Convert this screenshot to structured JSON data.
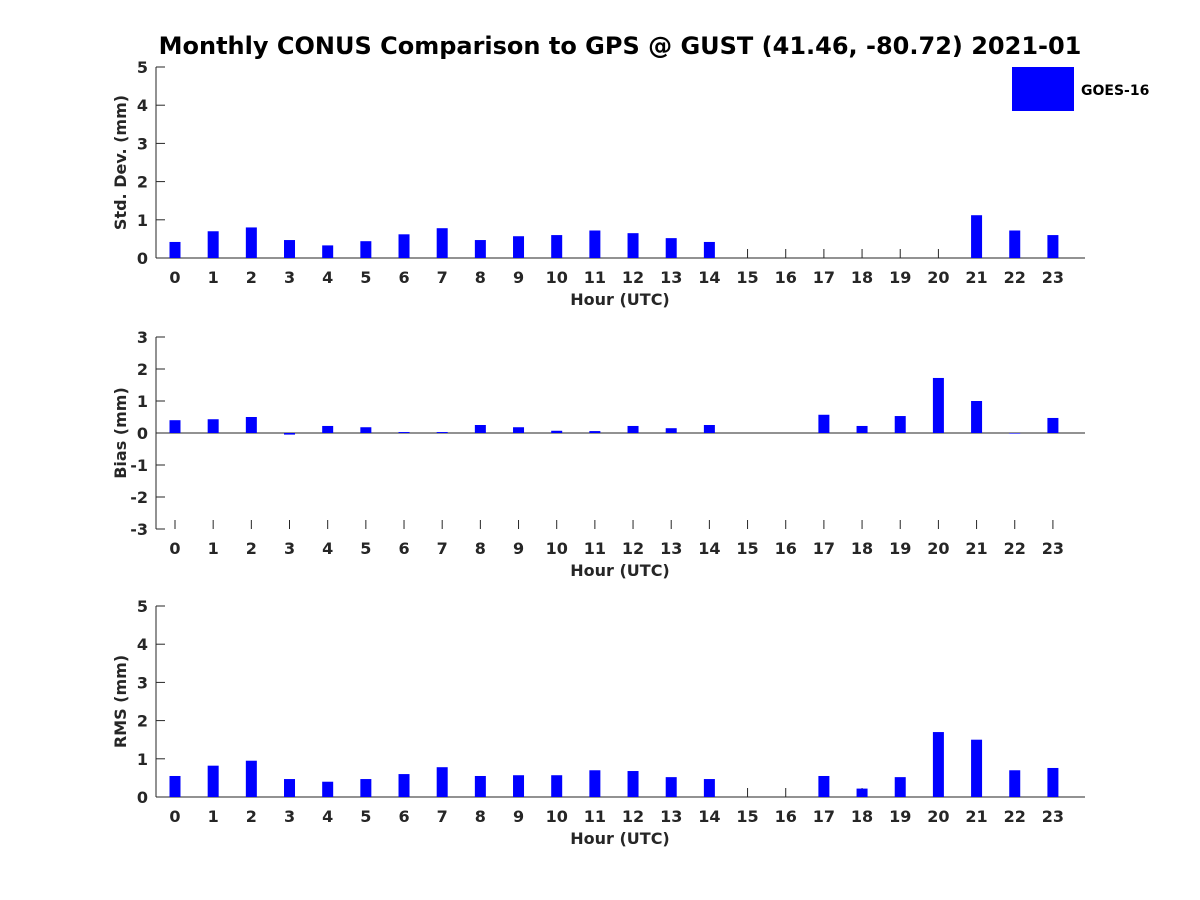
{
  "title": "Monthly CONUS Comparison to GPS @ GUST (41.46, -80.72) 2021-01",
  "legend": {
    "label": "GOES-16",
    "color": "#0000ff"
  },
  "colors": {
    "bar": "#0000ff",
    "axis": "#262626"
  },
  "chart_data": [
    {
      "type": "bar",
      "title": "",
      "xlabel": "Hour (UTC)",
      "ylabel": "Std. Dev. (mm)",
      "ylim": [
        0,
        5
      ],
      "yticks": [
        0,
        1,
        2,
        3,
        4,
        5
      ],
      "categories": [
        "0",
        "1",
        "2",
        "3",
        "4",
        "5",
        "6",
        "7",
        "8",
        "9",
        "10",
        "11",
        "12",
        "13",
        "14",
        "15",
        "16",
        "17",
        "18",
        "19",
        "20",
        "21",
        "22",
        "23"
      ],
      "series": [
        {
          "name": "GOES-16",
          "values": [
            0.42,
            0.7,
            0.8,
            0.47,
            0.33,
            0.44,
            0.62,
            0.78,
            0.47,
            0.57,
            0.6,
            0.72,
            0.65,
            0.52,
            0.42,
            null,
            null,
            null,
            null,
            null,
            null,
            1.12,
            0.72,
            0.6
          ]
        }
      ],
      "legend": "top-right"
    },
    {
      "type": "bar",
      "title": "",
      "xlabel": "Hour (UTC)",
      "ylabel": "Bias (mm)",
      "ylim": [
        -3,
        3
      ],
      "yticks": [
        -3,
        -2,
        -1,
        0,
        1,
        2,
        3
      ],
      "categories": [
        "0",
        "1",
        "2",
        "3",
        "4",
        "5",
        "6",
        "7",
        "8",
        "9",
        "10",
        "11",
        "12",
        "13",
        "14",
        "15",
        "16",
        "17",
        "18",
        "19",
        "20",
        "21",
        "22",
        "23"
      ],
      "series": [
        {
          "name": "GOES-16",
          "values": [
            0.4,
            0.43,
            0.5,
            -0.05,
            0.22,
            0.18,
            0.03,
            0.03,
            0.25,
            0.18,
            0.07,
            0.06,
            0.22,
            0.15,
            0.25,
            null,
            null,
            0.57,
            0.22,
            0.53,
            1.72,
            1.0,
            0.0,
            0.47
          ]
        }
      ]
    },
    {
      "type": "bar",
      "title": "",
      "xlabel": "Hour (UTC)",
      "ylabel": "RMS (mm)",
      "ylim": [
        0,
        5
      ],
      "yticks": [
        0,
        1,
        2,
        3,
        4,
        5
      ],
      "categories": [
        "0",
        "1",
        "2",
        "3",
        "4",
        "5",
        "6",
        "7",
        "8",
        "9",
        "10",
        "11",
        "12",
        "13",
        "14",
        "15",
        "16",
        "17",
        "18",
        "19",
        "20",
        "21",
        "22",
        "23"
      ],
      "series": [
        {
          "name": "GOES-16",
          "values": [
            0.55,
            0.82,
            0.95,
            0.47,
            0.4,
            0.47,
            0.6,
            0.78,
            0.55,
            0.57,
            0.57,
            0.7,
            0.68,
            0.52,
            0.47,
            null,
            null,
            0.55,
            0.22,
            0.52,
            1.7,
            1.5,
            0.7,
            0.76
          ]
        }
      ]
    }
  ]
}
